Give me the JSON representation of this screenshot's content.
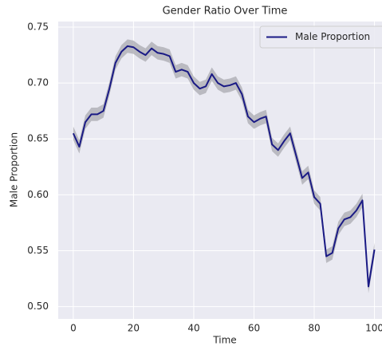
{
  "chart_data": {
    "type": "line",
    "title": "Gender Ratio Over Time",
    "xlabel": "Time",
    "ylabel": "Male Proportion",
    "x": [
      0,
      2,
      4,
      6,
      8,
      10,
      12,
      14,
      16,
      18,
      20,
      22,
      24,
      26,
      28,
      30,
      32,
      34,
      36,
      38,
      40,
      42,
      44,
      46,
      48,
      50,
      52,
      54,
      56,
      58,
      60,
      62,
      64,
      66,
      68,
      70,
      72,
      74,
      76,
      78,
      80,
      82,
      84,
      86,
      88,
      90,
      92,
      94,
      96,
      98,
      100
    ],
    "series": [
      {
        "name": "Male Proportion",
        "color": "#1a1a85",
        "values": [
          0.655,
          0.643,
          0.665,
          0.672,
          0.672,
          0.675,
          0.695,
          0.718,
          0.728,
          0.733,
          0.732,
          0.728,
          0.725,
          0.731,
          0.727,
          0.726,
          0.724,
          0.71,
          0.712,
          0.71,
          0.7,
          0.695,
          0.697,
          0.708,
          0.7,
          0.697,
          0.698,
          0.7,
          0.69,
          0.67,
          0.665,
          0.668,
          0.67,
          0.645,
          0.64,
          0.648,
          0.655,
          0.635,
          0.615,
          0.62,
          0.598,
          0.592,
          0.545,
          0.548,
          0.57,
          0.578,
          0.58,
          0.586,
          0.595,
          0.518,
          0.551
        ]
      }
    ],
    "band": {
      "color": "#a9a9b0",
      "lower": [
        0.649,
        0.637,
        0.659,
        0.666,
        0.666,
        0.669,
        0.689,
        0.712,
        0.722,
        0.727,
        0.726,
        0.722,
        0.719,
        0.725,
        0.721,
        0.72,
        0.718,
        0.704,
        0.706,
        0.704,
        0.694,
        0.689,
        0.691,
        0.702,
        0.694,
        0.691,
        0.692,
        0.694,
        0.684,
        0.664,
        0.659,
        0.662,
        0.664,
        0.639,
        0.634,
        0.642,
        0.649,
        0.629,
        0.609,
        0.614,
        0.592,
        0.586,
        0.539,
        0.542,
        0.564,
        0.572,
        0.574,
        0.58,
        0.589,
        0.512,
        0.545
      ],
      "upper": [
        0.661,
        0.649,
        0.671,
        0.678,
        0.678,
        0.681,
        0.701,
        0.724,
        0.734,
        0.739,
        0.738,
        0.734,
        0.731,
        0.737,
        0.733,
        0.732,
        0.73,
        0.716,
        0.718,
        0.716,
        0.706,
        0.701,
        0.703,
        0.714,
        0.706,
        0.703,
        0.704,
        0.706,
        0.696,
        0.676,
        0.671,
        0.674,
        0.676,
        0.651,
        0.646,
        0.654,
        0.661,
        0.641,
        0.621,
        0.626,
        0.604,
        0.598,
        0.551,
        0.554,
        0.576,
        0.584,
        0.586,
        0.592,
        0.601,
        0.524,
        0.557
      ]
    },
    "xlim": [
      -5,
      102.5
    ],
    "xticks": [
      0,
      20,
      40,
      60,
      80,
      100
    ],
    "ylim": [
      0.489,
      0.755
    ],
    "yticks": [
      {
        "value": 0.5,
        "label": "0.50"
      },
      0.55,
      {
        "value": 0.6,
        "label": "0.60"
      },
      0.65,
      {
        "value": 0.7,
        "label": "0.70"
      },
      0.75
    ],
    "grid": true,
    "legend": "upper right",
    "background": "#eaeaf2"
  }
}
